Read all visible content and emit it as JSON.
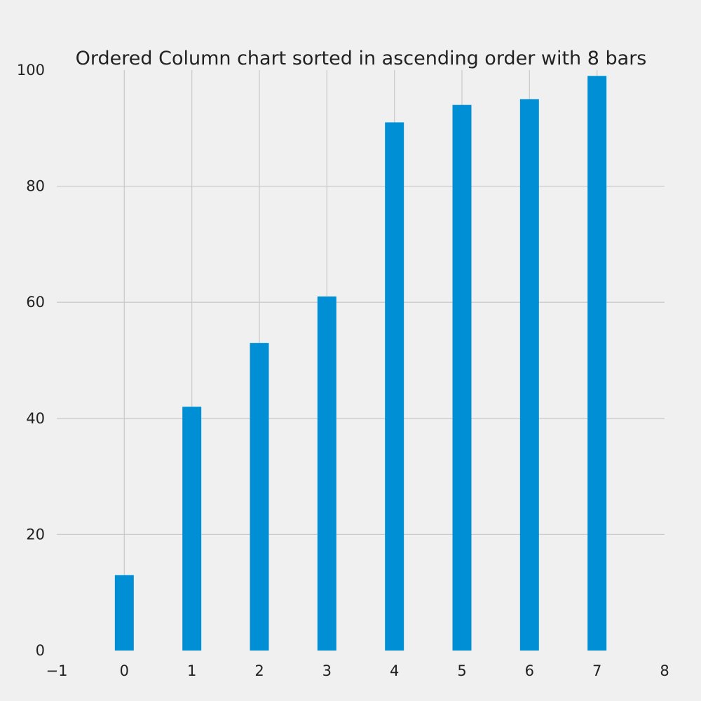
{
  "chart_data": {
    "type": "bar",
    "title": "Ordered Column chart sorted in ascending order with 8 bars",
    "xlabel": "",
    "ylabel": "",
    "categories": [
      0,
      1,
      2,
      3,
      4,
      5,
      6,
      7
    ],
    "values": [
      13,
      42,
      53,
      61,
      91,
      94,
      95,
      99
    ],
    "xlim": [
      -1,
      8
    ],
    "ylim": [
      0,
      100
    ],
    "xticks": [
      "−1",
      "0",
      "1",
      "2",
      "3",
      "4",
      "5",
      "6",
      "7",
      "8"
    ],
    "yticks": [
      "0",
      "20",
      "40",
      "60",
      "80",
      "100"
    ],
    "grid": true,
    "bar_color": "#008fd5",
    "background_color": "#f0f0f0",
    "grid_color": "#cbcbcb"
  }
}
